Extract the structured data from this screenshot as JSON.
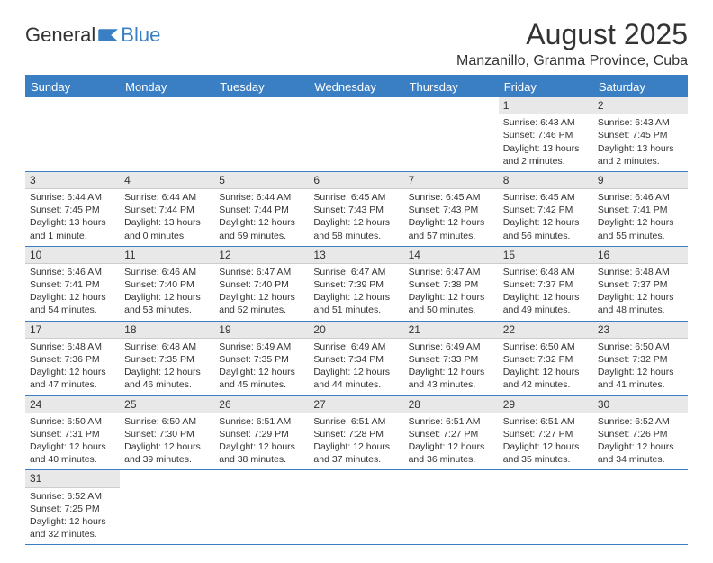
{
  "logo": {
    "text_general": "General",
    "text_blue": "Blue"
  },
  "title": "August 2025",
  "location": "Manzanillo, Granma Province, Cuba",
  "colors": {
    "brand_blue": "#3a7fc4",
    "day_num_bg": "#e8e8e8",
    "text": "#333333",
    "bg": "#ffffff"
  },
  "weekdays": [
    "Sunday",
    "Monday",
    "Tuesday",
    "Wednesday",
    "Thursday",
    "Friday",
    "Saturday"
  ],
  "weeks": [
    [
      {
        "empty": true
      },
      {
        "empty": true
      },
      {
        "empty": true
      },
      {
        "empty": true
      },
      {
        "empty": true
      },
      {
        "n": "1",
        "sunrise": "Sunrise: 6:43 AM",
        "sunset": "Sunset: 7:46 PM",
        "daylight": "Daylight: 13 hours and 2 minutes."
      },
      {
        "n": "2",
        "sunrise": "Sunrise: 6:43 AM",
        "sunset": "Sunset: 7:45 PM",
        "daylight": "Daylight: 13 hours and 2 minutes."
      }
    ],
    [
      {
        "n": "3",
        "sunrise": "Sunrise: 6:44 AM",
        "sunset": "Sunset: 7:45 PM",
        "daylight": "Daylight: 13 hours and 1 minute."
      },
      {
        "n": "4",
        "sunrise": "Sunrise: 6:44 AM",
        "sunset": "Sunset: 7:44 PM",
        "daylight": "Daylight: 13 hours and 0 minutes."
      },
      {
        "n": "5",
        "sunrise": "Sunrise: 6:44 AM",
        "sunset": "Sunset: 7:44 PM",
        "daylight": "Daylight: 12 hours and 59 minutes."
      },
      {
        "n": "6",
        "sunrise": "Sunrise: 6:45 AM",
        "sunset": "Sunset: 7:43 PM",
        "daylight": "Daylight: 12 hours and 58 minutes."
      },
      {
        "n": "7",
        "sunrise": "Sunrise: 6:45 AM",
        "sunset": "Sunset: 7:43 PM",
        "daylight": "Daylight: 12 hours and 57 minutes."
      },
      {
        "n": "8",
        "sunrise": "Sunrise: 6:45 AM",
        "sunset": "Sunset: 7:42 PM",
        "daylight": "Daylight: 12 hours and 56 minutes."
      },
      {
        "n": "9",
        "sunrise": "Sunrise: 6:46 AM",
        "sunset": "Sunset: 7:41 PM",
        "daylight": "Daylight: 12 hours and 55 minutes."
      }
    ],
    [
      {
        "n": "10",
        "sunrise": "Sunrise: 6:46 AM",
        "sunset": "Sunset: 7:41 PM",
        "daylight": "Daylight: 12 hours and 54 minutes."
      },
      {
        "n": "11",
        "sunrise": "Sunrise: 6:46 AM",
        "sunset": "Sunset: 7:40 PM",
        "daylight": "Daylight: 12 hours and 53 minutes."
      },
      {
        "n": "12",
        "sunrise": "Sunrise: 6:47 AM",
        "sunset": "Sunset: 7:40 PM",
        "daylight": "Daylight: 12 hours and 52 minutes."
      },
      {
        "n": "13",
        "sunrise": "Sunrise: 6:47 AM",
        "sunset": "Sunset: 7:39 PM",
        "daylight": "Daylight: 12 hours and 51 minutes."
      },
      {
        "n": "14",
        "sunrise": "Sunrise: 6:47 AM",
        "sunset": "Sunset: 7:38 PM",
        "daylight": "Daylight: 12 hours and 50 minutes."
      },
      {
        "n": "15",
        "sunrise": "Sunrise: 6:48 AM",
        "sunset": "Sunset: 7:37 PM",
        "daylight": "Daylight: 12 hours and 49 minutes."
      },
      {
        "n": "16",
        "sunrise": "Sunrise: 6:48 AM",
        "sunset": "Sunset: 7:37 PM",
        "daylight": "Daylight: 12 hours and 48 minutes."
      }
    ],
    [
      {
        "n": "17",
        "sunrise": "Sunrise: 6:48 AM",
        "sunset": "Sunset: 7:36 PM",
        "daylight": "Daylight: 12 hours and 47 minutes."
      },
      {
        "n": "18",
        "sunrise": "Sunrise: 6:48 AM",
        "sunset": "Sunset: 7:35 PM",
        "daylight": "Daylight: 12 hours and 46 minutes."
      },
      {
        "n": "19",
        "sunrise": "Sunrise: 6:49 AM",
        "sunset": "Sunset: 7:35 PM",
        "daylight": "Daylight: 12 hours and 45 minutes."
      },
      {
        "n": "20",
        "sunrise": "Sunrise: 6:49 AM",
        "sunset": "Sunset: 7:34 PM",
        "daylight": "Daylight: 12 hours and 44 minutes."
      },
      {
        "n": "21",
        "sunrise": "Sunrise: 6:49 AM",
        "sunset": "Sunset: 7:33 PM",
        "daylight": "Daylight: 12 hours and 43 minutes."
      },
      {
        "n": "22",
        "sunrise": "Sunrise: 6:50 AM",
        "sunset": "Sunset: 7:32 PM",
        "daylight": "Daylight: 12 hours and 42 minutes."
      },
      {
        "n": "23",
        "sunrise": "Sunrise: 6:50 AM",
        "sunset": "Sunset: 7:32 PM",
        "daylight": "Daylight: 12 hours and 41 minutes."
      }
    ],
    [
      {
        "n": "24",
        "sunrise": "Sunrise: 6:50 AM",
        "sunset": "Sunset: 7:31 PM",
        "daylight": "Daylight: 12 hours and 40 minutes."
      },
      {
        "n": "25",
        "sunrise": "Sunrise: 6:50 AM",
        "sunset": "Sunset: 7:30 PM",
        "daylight": "Daylight: 12 hours and 39 minutes."
      },
      {
        "n": "26",
        "sunrise": "Sunrise: 6:51 AM",
        "sunset": "Sunset: 7:29 PM",
        "daylight": "Daylight: 12 hours and 38 minutes."
      },
      {
        "n": "27",
        "sunrise": "Sunrise: 6:51 AM",
        "sunset": "Sunset: 7:28 PM",
        "daylight": "Daylight: 12 hours and 37 minutes."
      },
      {
        "n": "28",
        "sunrise": "Sunrise: 6:51 AM",
        "sunset": "Sunset: 7:27 PM",
        "daylight": "Daylight: 12 hours and 36 minutes."
      },
      {
        "n": "29",
        "sunrise": "Sunrise: 6:51 AM",
        "sunset": "Sunset: 7:27 PM",
        "daylight": "Daylight: 12 hours and 35 minutes."
      },
      {
        "n": "30",
        "sunrise": "Sunrise: 6:52 AM",
        "sunset": "Sunset: 7:26 PM",
        "daylight": "Daylight: 12 hours and 34 minutes."
      }
    ],
    [
      {
        "n": "31",
        "sunrise": "Sunrise: 6:52 AM",
        "sunset": "Sunset: 7:25 PM",
        "daylight": "Daylight: 12 hours and 32 minutes."
      },
      {
        "empty": true
      },
      {
        "empty": true
      },
      {
        "empty": true
      },
      {
        "empty": true
      },
      {
        "empty": true
      },
      {
        "empty": true
      }
    ]
  ]
}
